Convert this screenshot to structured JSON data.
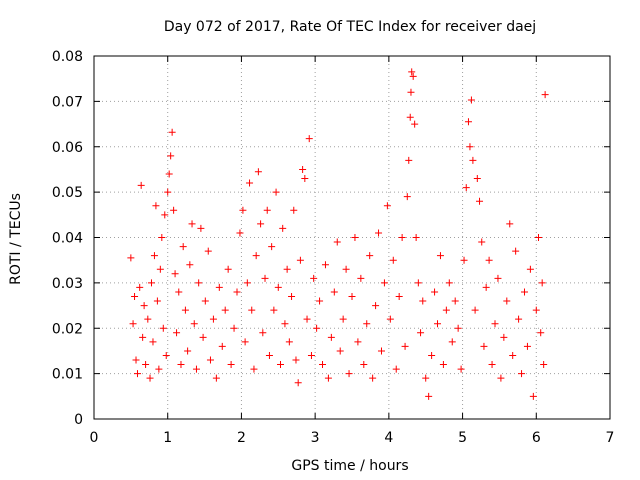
{
  "chart_data": {
    "type": "scatter",
    "title": "Day 072 of 2017, Rate Of TEC Index for receiver daej",
    "xlabel": "GPS time / hours",
    "ylabel": "ROTI / TECUs",
    "xlim": [
      0,
      7
    ],
    "ylim": [
      0,
      0.08
    ],
    "x_ticks": [
      "0",
      "1",
      "2",
      "3",
      "4",
      "5",
      "6",
      "7"
    ],
    "y_ticks": [
      "0",
      "0.01",
      "0.02",
      "0.03",
      "0.04",
      "0.05",
      "0.06",
      "0.07",
      "0.08"
    ],
    "grid": true,
    "marker": "+",
    "color": "#ff0000",
    "series": [
      {
        "values": [
          [
            0.5,
            0.0355
          ],
          [
            0.53,
            0.021
          ],
          [
            0.55,
            0.027
          ],
          [
            0.57,
            0.013
          ],
          [
            0.59,
            0.01
          ],
          [
            0.62,
            0.029
          ],
          [
            0.64,
            0.0515
          ],
          [
            0.66,
            0.018
          ],
          [
            0.68,
            0.025
          ],
          [
            0.7,
            0.012
          ],
          [
            0.73,
            0.022
          ],
          [
            0.76,
            0.009
          ],
          [
            0.78,
            0.03
          ],
          [
            0.8,
            0.017
          ],
          [
            0.82,
            0.036
          ],
          [
            0.84,
            0.047
          ],
          [
            0.86,
            0.026
          ],
          [
            0.88,
            0.011
          ],
          [
            0.9,
            0.033
          ],
          [
            0.92,
            0.04
          ],
          [
            0.94,
            0.02
          ],
          [
            0.96,
            0.045
          ],
          [
            0.98,
            0.014
          ],
          [
            1.0,
            0.05
          ],
          [
            1.02,
            0.054
          ],
          [
            1.04,
            0.058
          ],
          [
            1.06,
            0.0632
          ],
          [
            1.08,
            0.046
          ],
          [
            1.1,
            0.032
          ],
          [
            1.12,
            0.019
          ],
          [
            1.15,
            0.028
          ],
          [
            1.18,
            0.012
          ],
          [
            1.21,
            0.038
          ],
          [
            1.24,
            0.024
          ],
          [
            1.27,
            0.015
          ],
          [
            1.3,
            0.034
          ],
          [
            1.33,
            0.043
          ],
          [
            1.36,
            0.021
          ],
          [
            1.39,
            0.011
          ],
          [
            1.42,
            0.03
          ],
          [
            1.45,
            0.042
          ],
          [
            1.48,
            0.018
          ],
          [
            1.51,
            0.026
          ],
          [
            1.55,
            0.037
          ],
          [
            1.58,
            0.013
          ],
          [
            1.62,
            0.022
          ],
          [
            1.66,
            0.009
          ],
          [
            1.7,
            0.029
          ],
          [
            1.74,
            0.016
          ],
          [
            1.78,
            0.024
          ],
          [
            1.82,
            0.033
          ],
          [
            1.86,
            0.012
          ],
          [
            1.9,
            0.02
          ],
          [
            1.94,
            0.028
          ],
          [
            1.98,
            0.041
          ],
          [
            2.02,
            0.046
          ],
          [
            2.05,
            0.017
          ],
          [
            2.08,
            0.03
          ],
          [
            2.11,
            0.052
          ],
          [
            2.14,
            0.024
          ],
          [
            2.17,
            0.011
          ],
          [
            2.2,
            0.036
          ],
          [
            2.23,
            0.0545
          ],
          [
            2.26,
            0.043
          ],
          [
            2.29,
            0.019
          ],
          [
            2.32,
            0.031
          ],
          [
            2.35,
            0.046
          ],
          [
            2.38,
            0.014
          ],
          [
            2.41,
            0.038
          ],
          [
            2.44,
            0.024
          ],
          [
            2.47,
            0.05
          ],
          [
            2.5,
            0.029
          ],
          [
            2.53,
            0.012
          ],
          [
            2.56,
            0.042
          ],
          [
            2.59,
            0.021
          ],
          [
            2.62,
            0.033
          ],
          [
            2.65,
            0.017
          ],
          [
            2.68,
            0.027
          ],
          [
            2.71,
            0.046
          ],
          [
            2.74,
            0.013
          ],
          [
            2.77,
            0.008
          ],
          [
            2.8,
            0.035
          ],
          [
            2.83,
            0.055
          ],
          [
            2.86,
            0.053
          ],
          [
            2.89,
            0.022
          ],
          [
            2.92,
            0.0618
          ],
          [
            2.95,
            0.014
          ],
          [
            2.98,
            0.031
          ],
          [
            3.02,
            0.02
          ],
          [
            3.06,
            0.026
          ],
          [
            3.1,
            0.012
          ],
          [
            3.14,
            0.034
          ],
          [
            3.18,
            0.009
          ],
          [
            3.22,
            0.018
          ],
          [
            3.26,
            0.028
          ],
          [
            3.3,
            0.039
          ],
          [
            3.34,
            0.015
          ],
          [
            3.38,
            0.022
          ],
          [
            3.42,
            0.033
          ],
          [
            3.46,
            0.01
          ],
          [
            3.5,
            0.027
          ],
          [
            3.54,
            0.04
          ],
          [
            3.58,
            0.017
          ],
          [
            3.62,
            0.031
          ],
          [
            3.66,
            0.012
          ],
          [
            3.7,
            0.021
          ],
          [
            3.74,
            0.036
          ],
          [
            3.78,
            0.009
          ],
          [
            3.82,
            0.025
          ],
          [
            3.86,
            0.041
          ],
          [
            3.9,
            0.015
          ],
          [
            3.94,
            0.03
          ],
          [
            3.98,
            0.047
          ],
          [
            4.02,
            0.022
          ],
          [
            4.06,
            0.035
          ],
          [
            4.1,
            0.011
          ],
          [
            4.14,
            0.027
          ],
          [
            4.18,
            0.04
          ],
          [
            4.22,
            0.016
          ],
          [
            4.25,
            0.049
          ],
          [
            4.27,
            0.057
          ],
          [
            4.29,
            0.0665
          ],
          [
            4.3,
            0.072
          ],
          [
            4.31,
            0.0765
          ],
          [
            4.33,
            0.0755
          ],
          [
            4.35,
            0.065
          ],
          [
            4.37,
            0.04
          ],
          [
            4.4,
            0.03
          ],
          [
            4.43,
            0.019
          ],
          [
            4.46,
            0.026
          ],
          [
            4.5,
            0.009
          ],
          [
            4.54,
            0.005
          ],
          [
            4.58,
            0.014
          ],
          [
            4.62,
            0.028
          ],
          [
            4.66,
            0.021
          ],
          [
            4.7,
            0.036
          ],
          [
            4.74,
            0.012
          ],
          [
            4.78,
            0.024
          ],
          [
            4.82,
            0.03
          ],
          [
            4.86,
            0.017
          ],
          [
            4.9,
            0.026
          ],
          [
            4.94,
            0.02
          ],
          [
            4.98,
            0.011
          ],
          [
            5.02,
            0.035
          ],
          [
            5.05,
            0.051
          ],
          [
            5.08,
            0.0655
          ],
          [
            5.1,
            0.06
          ],
          [
            5.12,
            0.0703
          ],
          [
            5.14,
            0.057
          ],
          [
            5.17,
            0.024
          ],
          [
            5.2,
            0.053
          ],
          [
            5.23,
            0.048
          ],
          [
            5.26,
            0.039
          ],
          [
            5.29,
            0.016
          ],
          [
            5.32,
            0.029
          ],
          [
            5.36,
            0.035
          ],
          [
            5.4,
            0.012
          ],
          [
            5.44,
            0.021
          ],
          [
            5.48,
            0.031
          ],
          [
            5.52,
            0.009
          ],
          [
            5.56,
            0.018
          ],
          [
            5.6,
            0.026
          ],
          [
            5.64,
            0.043
          ],
          [
            5.68,
            0.014
          ],
          [
            5.72,
            0.037
          ],
          [
            5.76,
            0.022
          ],
          [
            5.8,
            0.01
          ],
          [
            5.84,
            0.028
          ],
          [
            5.88,
            0.016
          ],
          [
            5.92,
            0.033
          ],
          [
            5.96,
            0.005
          ],
          [
            6.0,
            0.024
          ],
          [
            6.03,
            0.04
          ],
          [
            6.06,
            0.019
          ],
          [
            6.08,
            0.03
          ],
          [
            6.1,
            0.012
          ],
          [
            6.12,
            0.0715
          ]
        ]
      }
    ]
  }
}
